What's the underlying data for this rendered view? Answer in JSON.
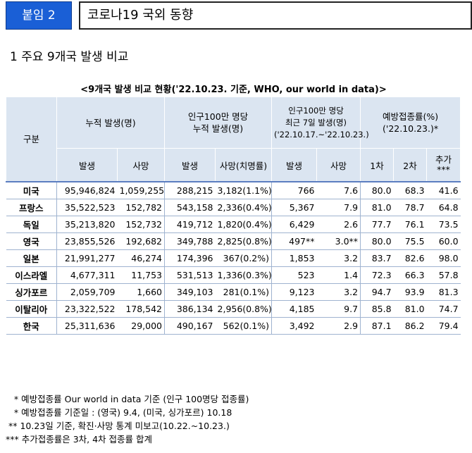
{
  "header": {
    "badge": "붙임 2",
    "title": "코로나19 국외 동향"
  },
  "section_title": "1  주요 9개국 발생 비교",
  "caption": "<9개국 발생 비교 현황('22.10.23. 기준, WHO, our world in data)>",
  "columns": {
    "group": "구분",
    "cumulative": "누적 발생(명)",
    "per_million": "인구100만 명당\n누적 발생(명)",
    "weekly": "인구100만 명당\n최근 7일 발생(명)\n('22.10.17.~'22.10.23.)",
    "vaccination": "예방접종률(%)\n('22.10.23.)*",
    "cases": "발생",
    "deaths": "사망",
    "cases2": "발생",
    "deaths_rate": "사망(치명률)",
    "cases3": "발생",
    "deaths3": "사망",
    "dose1": "1차",
    "dose2": "2차",
    "booster": "추가\n***"
  },
  "rows": [
    {
      "country": "미국",
      "cum_cases": "95,946,824",
      "cum_deaths": "1,059,255",
      "pm_cases": "288,215",
      "pm_deaths": "3,182(1.1%)",
      "w_cases": "766",
      "w_deaths": "7.6",
      "d1": "80.0",
      "d2": "68.3",
      "b": "41.6"
    },
    {
      "country": "프랑스",
      "cum_cases": "35,522,523",
      "cum_deaths": "152,782",
      "pm_cases": "543,158",
      "pm_deaths": "2,336(0.4%)",
      "w_cases": "5,367",
      "w_deaths": "7.9",
      "d1": "81.0",
      "d2": "78.7",
      "b": "64.8"
    },
    {
      "country": "독일",
      "cum_cases": "35,213,820",
      "cum_deaths": "152,732",
      "pm_cases": "419,712",
      "pm_deaths": "1,820(0.4%)",
      "w_cases": "6,429",
      "w_deaths": "2.6",
      "d1": "77.7",
      "d2": "76.1",
      "b": "73.5"
    },
    {
      "country": "영국",
      "cum_cases": "23,855,526",
      "cum_deaths": "192,682",
      "pm_cases": "349,788",
      "pm_deaths": "2,825(0.8%)",
      "w_cases": "497**",
      "w_deaths": "3.0**",
      "d1": "80.0",
      "d2": "75.5",
      "b": "60.0"
    },
    {
      "country": "일본",
      "cum_cases": "21,991,277",
      "cum_deaths": "46,274",
      "pm_cases": "174,396",
      "pm_deaths": "367(0.2%)",
      "w_cases": "1,853",
      "w_deaths": "3.2",
      "d1": "83.7",
      "d2": "82.6",
      "b": "98.0"
    },
    {
      "country": "이스라엘",
      "cum_cases": "4,677,311",
      "cum_deaths": "11,753",
      "pm_cases": "531,513",
      "pm_deaths": "1,336(0.3%)",
      "w_cases": "523",
      "w_deaths": "1.4",
      "d1": "72.3",
      "d2": "66.3",
      "b": "57.8"
    },
    {
      "country": "싱가포르",
      "cum_cases": "2,059,709",
      "cum_deaths": "1,660",
      "pm_cases": "349,103",
      "pm_deaths": "281(0.1%)",
      "w_cases": "9,123",
      "w_deaths": "3.2",
      "d1": "94.7",
      "d2": "93.9",
      "b": "81.3"
    },
    {
      "country": "이탈리아",
      "cum_cases": "23,322,522",
      "cum_deaths": "178,542",
      "pm_cases": "386,134",
      "pm_deaths": "2,956(0.8%)",
      "w_cases": "4,185",
      "w_deaths": "9.7",
      "d1": "85.8",
      "d2": "81.0",
      "b": "74.7"
    },
    {
      "country": "한국",
      "cum_cases": "25,311,636",
      "cum_deaths": "29,000",
      "pm_cases": "490,167",
      "pm_deaths": "562(0.1%)",
      "w_cases": "3,492",
      "w_deaths": "2.9",
      "d1": "87.1",
      "d2": "86.2",
      "b": "79.4"
    }
  ],
  "footnotes": [
    "   * 예방접종률 Our world in data 기준 (인구 100명당 접종률)",
    "   * 예방접종률 기준일 : (영국) 9.4, (미국, 싱가포르) 10.18",
    " ** 10.23일 기준, 확진·사망 통계 미보고(10.22.~10.23.)",
    "*** 추가접종률은 3차, 4차 접종률 합계"
  ]
}
